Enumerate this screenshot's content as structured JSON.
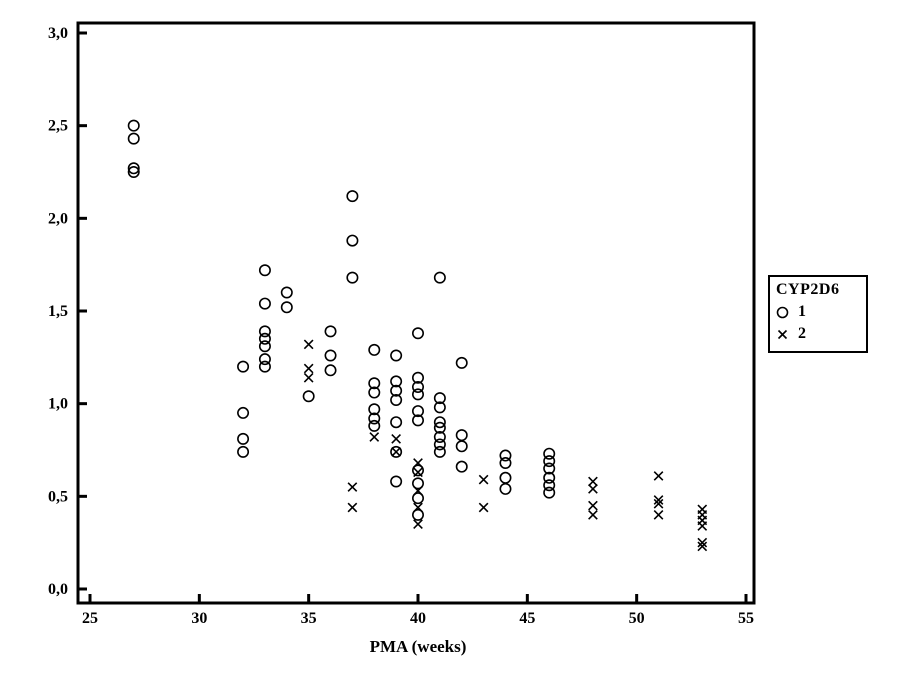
{
  "chart_data": {
    "type": "scatter",
    "title": "",
    "xlabel": "PMA (weeks)",
    "ylabel": "",
    "xlim": [
      25,
      55
    ],
    "ylim": [
      0.0,
      3.0
    ],
    "grid": false,
    "x_ticks": [
      25,
      30,
      35,
      40,
      45,
      50,
      55
    ],
    "y_ticks": [
      {
        "value": 0.0,
        "label": "0,0"
      },
      {
        "value": 0.5,
        "label": "0,5"
      },
      {
        "value": 1.0,
        "label": "1,0"
      },
      {
        "value": 1.5,
        "label": "1,5"
      },
      {
        "value": 2.0,
        "label": "2,0"
      },
      {
        "value": 2.5,
        "label": "2,5"
      },
      {
        "value": 3.0,
        "label": "3,0"
      }
    ],
    "legend": {
      "title": "CYP2D6",
      "position": "right-outside",
      "entries": [
        {
          "label": "1",
          "marker": "circle"
        },
        {
          "label": "2",
          "marker": "x"
        }
      ]
    },
    "marker_color": "#000000",
    "series": [
      {
        "name": "1",
        "marker": "circle",
        "points": [
          [
            27,
            2.5
          ],
          [
            27,
            2.43
          ],
          [
            27,
            2.27
          ],
          [
            27,
            2.25
          ],
          [
            32,
            1.2
          ],
          [
            32,
            0.95
          ],
          [
            32,
            0.81
          ],
          [
            32,
            0.74
          ],
          [
            33,
            1.72
          ],
          [
            33,
            1.54
          ],
          [
            33,
            1.39
          ],
          [
            33,
            1.35
          ],
          [
            33,
            1.31
          ],
          [
            33,
            1.24
          ],
          [
            33,
            1.2
          ],
          [
            34,
            1.6
          ],
          [
            34,
            1.52
          ],
          [
            35,
            1.04
          ],
          [
            36,
            1.39
          ],
          [
            36,
            1.26
          ],
          [
            36,
            1.18
          ],
          [
            37,
            2.12
          ],
          [
            37,
            1.88
          ],
          [
            37,
            1.68
          ],
          [
            38,
            1.29
          ],
          [
            38,
            1.11
          ],
          [
            38,
            1.06
          ],
          [
            38,
            0.97
          ],
          [
            38,
            0.92
          ],
          [
            38,
            0.88
          ],
          [
            39,
            1.26
          ],
          [
            39,
            1.12
          ],
          [
            39,
            1.07
          ],
          [
            39,
            1.02
          ],
          [
            39,
            0.9
          ],
          [
            39,
            0.74
          ],
          [
            39,
            0.58
          ],
          [
            40,
            1.38
          ],
          [
            40,
            1.14
          ],
          [
            40,
            1.09
          ],
          [
            40,
            1.05
          ],
          [
            40,
            0.96
          ],
          [
            40,
            0.91
          ],
          [
            40,
            0.64
          ],
          [
            40,
            0.57
          ],
          [
            40,
            0.49
          ],
          [
            40,
            0.4
          ],
          [
            41,
            1.68
          ],
          [
            41,
            1.03
          ],
          [
            41,
            0.98
          ],
          [
            41,
            0.9
          ],
          [
            41,
            0.87
          ],
          [
            41,
            0.82
          ],
          [
            41,
            0.78
          ],
          [
            41,
            0.74
          ],
          [
            42,
            1.22
          ],
          [
            42,
            0.83
          ],
          [
            42,
            0.77
          ],
          [
            42,
            0.66
          ],
          [
            44,
            0.72
          ],
          [
            44,
            0.68
          ],
          [
            44,
            0.6
          ],
          [
            44,
            0.54
          ],
          [
            46,
            0.73
          ],
          [
            46,
            0.69
          ],
          [
            46,
            0.65
          ],
          [
            46,
            0.6
          ],
          [
            46,
            0.56
          ],
          [
            46,
            0.52
          ]
        ]
      },
      {
        "name": "2",
        "marker": "x",
        "points": [
          [
            35,
            1.32
          ],
          [
            35,
            1.19
          ],
          [
            35,
            1.14
          ],
          [
            37,
            0.55
          ],
          [
            37,
            0.44
          ],
          [
            38,
            0.82
          ],
          [
            39,
            0.81
          ],
          [
            39,
            0.74
          ],
          [
            40,
            0.68
          ],
          [
            40,
            0.63
          ],
          [
            40,
            0.53
          ],
          [
            40,
            0.44
          ],
          [
            40,
            0.35
          ],
          [
            43,
            0.59
          ],
          [
            43,
            0.44
          ],
          [
            48,
            0.58
          ],
          [
            48,
            0.54
          ],
          [
            48,
            0.45
          ],
          [
            48,
            0.4
          ],
          [
            51,
            0.61
          ],
          [
            51,
            0.48
          ],
          [
            51,
            0.46
          ],
          [
            51,
            0.4
          ],
          [
            53,
            0.43
          ],
          [
            53,
            0.4
          ],
          [
            53,
            0.37
          ],
          [
            53,
            0.34
          ],
          [
            53,
            0.25
          ],
          [
            53,
            0.23
          ]
        ]
      }
    ]
  }
}
